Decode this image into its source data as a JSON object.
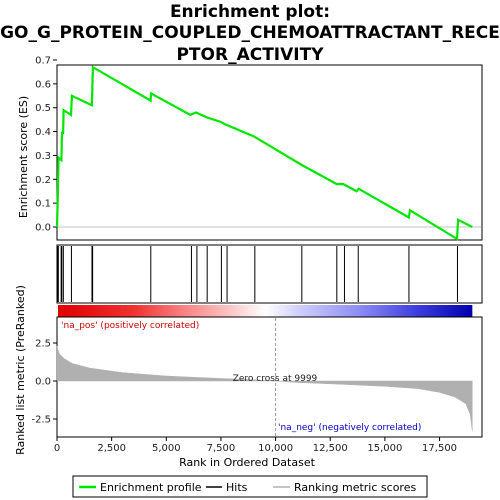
{
  "chart_data": {
    "type": "line",
    "title_lines": [
      "Enrichment plot:",
      "GO_G_PROTEIN_COUPLED_CHEMOATTRACTANT_RECE",
      "PTOR_ACTIVITY"
    ],
    "es_panel": {
      "ylabel": "Enrichment score (ES)",
      "ylim": [
        -0.05,
        0.7
      ],
      "yticks": [
        "0.0",
        "0.1",
        "0.2",
        "0.3",
        "0.4",
        "0.5",
        "0.6",
        "0.7"
      ],
      "profile": [
        [
          0,
          0.0
        ],
        [
          40,
          0.15
        ],
        [
          70,
          0.29
        ],
        [
          200,
          0.28
        ],
        [
          230,
          0.4
        ],
        [
          280,
          0.39
        ],
        [
          300,
          0.49
        ],
        [
          640,
          0.47
        ],
        [
          680,
          0.55
        ],
        [
          1590,
          0.51
        ],
        [
          1610,
          0.56
        ],
        [
          1640,
          0.67
        ],
        [
          4280,
          0.53
        ],
        [
          4300,
          0.56
        ],
        [
          6100,
          0.47
        ],
        [
          6350,
          0.48
        ],
        [
          6850,
          0.46
        ],
        [
          7500,
          0.44
        ],
        [
          7700,
          0.43
        ],
        [
          9000,
          0.38
        ],
        [
          11200,
          0.26
        ],
        [
          12800,
          0.18
        ],
        [
          13100,
          0.18
        ],
        [
          13700,
          0.15
        ],
        [
          13800,
          0.16
        ],
        [
          16100,
          0.04
        ],
        [
          16150,
          0.07
        ],
        [
          18300,
          -0.05
        ],
        [
          18350,
          0.03
        ],
        [
          19000,
          0.0
        ]
      ],
      "hits": [
        30,
        60,
        190,
        220,
        290,
        660,
        1600,
        1630,
        4290,
        6150,
        6400,
        6870,
        7520,
        7780,
        9050,
        11200,
        12800,
        13150,
        13780,
        16100,
        18320
      ]
    },
    "rank_panel": {
      "ylabel": "Ranked list metric (PreRanked)",
      "yticks": [
        "2.5",
        "0.0",
        "-2.5"
      ],
      "ylim": [
        -3.5,
        3.6
      ],
      "metric_profile": [
        [
          0,
          2.3
        ],
        [
          100,
          1.8
        ],
        [
          300,
          1.5
        ],
        [
          700,
          1.15
        ],
        [
          1500,
          0.85
        ],
        [
          3000,
          0.55
        ],
        [
          5000,
          0.33
        ],
        [
          7000,
          0.2
        ],
        [
          9000,
          0.08
        ],
        [
          9999,
          0.0
        ],
        [
          11000,
          -0.1
        ],
        [
          13000,
          -0.22
        ],
        [
          15000,
          -0.35
        ],
        [
          16500,
          -0.5
        ],
        [
          17500,
          -0.75
        ],
        [
          18200,
          -1.05
        ],
        [
          18700,
          -1.5
        ],
        [
          18900,
          -2.2
        ],
        [
          19000,
          -3.3
        ]
      ],
      "zero_cross_label": "Zero cross at 9999",
      "zero_cross_x": 9999,
      "pos_label": "'na_pos' (positively correlated)",
      "neg_label": "'na_neg' (negatively correlated)"
    },
    "x_axis": {
      "xlabel": "Rank in Ordered Dataset",
      "xlim": [
        0,
        20000
      ],
      "xticks": [
        "0",
        "2,500",
        "5,000",
        "7,500",
        "10,000",
        "12,500",
        "15,000",
        "17,500"
      ]
    },
    "legend": [
      "Enrichment profile",
      "Hits",
      "Ranking metric scores"
    ],
    "legend_placement": "bottom",
    "colors": {
      "profile": "#00e600",
      "hits": "#000000",
      "metric": "#b0b0b0",
      "pos": "#cc0000",
      "neg": "#0000cc"
    }
  }
}
